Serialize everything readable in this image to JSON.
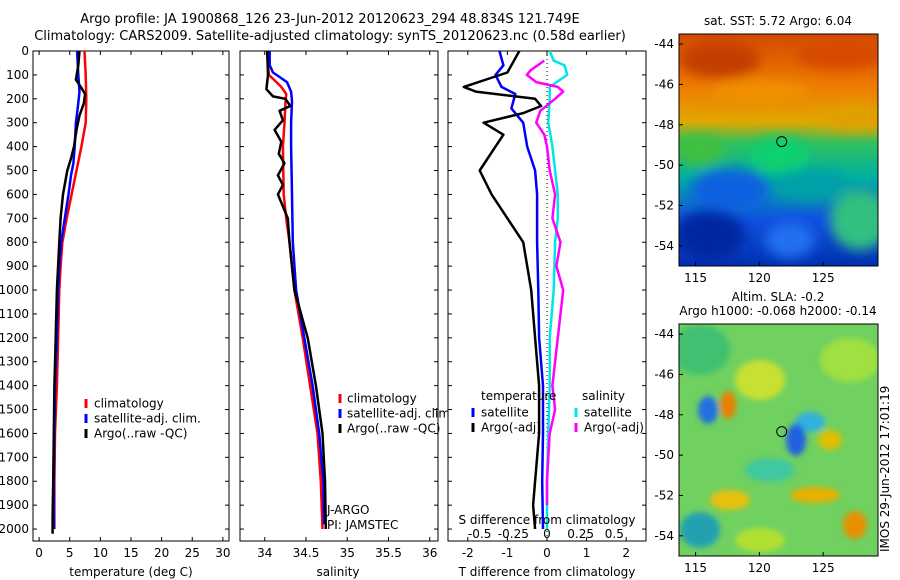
{
  "header": {
    "line1": "Argo profile: JA 1900868_126 23-Jun-2012 20120623_294 48.834S 121.749E",
    "line2": "Climatology: CARS2009. Satellite-adjusted climatology: synTS_20120623.nc (0.58d earlier)"
  },
  "colors": {
    "climatology": "#ff0000",
    "satellite": "#0000ff",
    "argo": "#000000",
    "argo_salinity": "#ff00ff",
    "satellite_salinity": "#00e5e5"
  },
  "chart_data": [
    {
      "type": "line",
      "id": "temperature",
      "xlabel": "temperature (deg C)",
      "xlim": [
        -1,
        31
      ],
      "xticks": [
        "0",
        "5",
        "10",
        "15",
        "20",
        "25",
        "30"
      ],
      "ylim": [
        0,
        2050
      ],
      "yticks": [
        "0",
        "100",
        "200",
        "300",
        "400",
        "500",
        "600",
        "700",
        "800",
        "900",
        "1000",
        "1100",
        "1200",
        "1300",
        "1400",
        "1500",
        "1600",
        "1700",
        "1800",
        "1900",
        "2000"
      ],
      "legend": [
        "climatology",
        "satellite-adj. clim.",
        "Argo(..raw -QC)"
      ],
      "series": [
        {
          "name": "climatology",
          "color": "#ff0000",
          "points": [
            [
              7.4,
              0
            ],
            [
              7.5,
              50
            ],
            [
              7.6,
              100
            ],
            [
              7.7,
              200
            ],
            [
              7.6,
              300
            ],
            [
              6.9,
              400
            ],
            [
              6.1,
              500
            ],
            [
              5.3,
              600
            ],
            [
              4.5,
              700
            ],
            [
              3.8,
              800
            ],
            [
              3.5,
              900
            ],
            [
              3.3,
              1000
            ],
            [
              3.1,
              1200
            ],
            [
              2.9,
              1400
            ],
            [
              2.6,
              1600
            ],
            [
              2.5,
              1800
            ],
            [
              2.5,
              2000
            ]
          ]
        },
        {
          "name": "satellite-adj. clim.",
          "color": "#0000ff",
          "points": [
            [
              6.2,
              0
            ],
            [
              6.3,
              50
            ],
            [
              6.4,
              100
            ],
            [
              6.6,
              170
            ],
            [
              6.3,
              240
            ],
            [
              6.0,
              300
            ],
            [
              5.8,
              400
            ],
            [
              5.6,
              470
            ],
            [
              5.2,
              520
            ],
            [
              4.8,
              600
            ],
            [
              4.2,
              700
            ],
            [
              3.6,
              800
            ],
            [
              3.3,
              900
            ],
            [
              3.1,
              1000
            ],
            [
              2.9,
              1200
            ],
            [
              2.6,
              1400
            ],
            [
              2.5,
              1600
            ],
            [
              2.4,
              1800
            ],
            [
              2.4,
              2000
            ]
          ]
        },
        {
          "name": "Argo(..raw -QC)",
          "color": "#000000",
          "points": [
            [
              6.6,
              0
            ],
            [
              6.4,
              60
            ],
            [
              6.0,
              120
            ],
            [
              6.8,
              150
            ],
            [
              7.5,
              180
            ],
            [
              7.3,
              220
            ],
            [
              6.6,
              270
            ],
            [
              6.1,
              330
            ],
            [
              5.7,
              400
            ],
            [
              5.2,
              450
            ],
            [
              4.6,
              500
            ],
            [
              3.9,
              600
            ],
            [
              3.5,
              700
            ],
            [
              3.3,
              800
            ],
            [
              3.1,
              900
            ],
            [
              2.9,
              1000
            ],
            [
              2.7,
              1200
            ],
            [
              2.5,
              1400
            ],
            [
              2.4,
              1600
            ],
            [
              2.3,
              1800
            ],
            [
              2.2,
              1950
            ],
            [
              2.2,
              2020
            ]
          ]
        }
      ]
    },
    {
      "type": "line",
      "id": "salinity",
      "xlabel": "salinity",
      "xlim": [
        33.7,
        36.1
      ],
      "xticks": [
        "34",
        "34.5",
        "35",
        "35.5",
        "36"
      ],
      "ylim": [
        0,
        2050
      ],
      "legend": [
        "climatology",
        "satellite-adj. clim.",
        "Argo(..raw -QC)"
      ],
      "annotation": [
        "J-ARGO",
        "PI: JAMSTEC"
      ],
      "series": [
        {
          "name": "climatology",
          "color": "#ff0000",
          "points": [
            [
              34.03,
              0
            ],
            [
              34.04,
              60
            ],
            [
              34.05,
              100
            ],
            [
              34.2,
              150
            ],
            [
              34.26,
              180
            ],
            [
              34.25,
              220
            ],
            [
              34.24,
              300
            ],
            [
              34.22,
              400
            ],
            [
              34.23,
              600
            ],
            [
              34.26,
              700
            ],
            [
              34.3,
              800
            ],
            [
              34.36,
              1000
            ],
            [
              34.46,
              1200
            ],
            [
              34.55,
              1400
            ],
            [
              34.64,
              1600
            ],
            [
              34.68,
              1800
            ],
            [
              34.7,
              2000
            ]
          ]
        },
        {
          "name": "satellite-adj. clim.",
          "color": "#0000ff",
          "points": [
            [
              34.06,
              0
            ],
            [
              34.06,
              60
            ],
            [
              34.1,
              90
            ],
            [
              34.27,
              130
            ],
            [
              34.32,
              170
            ],
            [
              34.33,
              210
            ],
            [
              34.32,
              300
            ],
            [
              34.32,
              400
            ],
            [
              34.33,
              600
            ],
            [
              34.34,
              800
            ],
            [
              34.38,
              1000
            ],
            [
              34.48,
              1200
            ],
            [
              34.58,
              1400
            ],
            [
              34.66,
              1600
            ],
            [
              34.71,
              1800
            ],
            [
              34.72,
              1980
            ]
          ]
        },
        {
          "name": "Argo(..raw -QC)",
          "color": "#000000",
          "points": [
            [
              34.03,
              0
            ],
            [
              34.04,
              100
            ],
            [
              34.02,
              160
            ],
            [
              34.1,
              190
            ],
            [
              34.25,
              200
            ],
            [
              34.31,
              230
            ],
            [
              34.18,
              250
            ],
            [
              34.22,
              290
            ],
            [
              34.12,
              330
            ],
            [
              34.2,
              380
            ],
            [
              34.17,
              430
            ],
            [
              34.24,
              470
            ],
            [
              34.16,
              520
            ],
            [
              34.22,
              560
            ],
            [
              34.16,
              600
            ],
            [
              34.22,
              650
            ],
            [
              34.28,
              700
            ],
            [
              34.3,
              800
            ],
            [
              34.36,
              1000
            ],
            [
              34.52,
              1200
            ],
            [
              34.62,
              1400
            ],
            [
              34.7,
              1600
            ],
            [
              34.73,
              1800
            ],
            [
              34.74,
              2000
            ]
          ]
        }
      ]
    },
    {
      "type": "line",
      "id": "difference",
      "xlabel": "T difference from climatology",
      "xlim": [
        -2.5,
        2.5
      ],
      "xticks": [
        "-2",
        "-1",
        "0",
        "1",
        "2"
      ],
      "xlabel2": "S difference from climatology",
      "xticks2": [
        "-0.5",
        "-0.25",
        "0",
        "0.25",
        "0.5"
      ],
      "ylim": [
        0,
        2050
      ],
      "legend_titles": [
        "temperature",
        "salinity"
      ],
      "legend": [
        "satellite",
        "Argo(-adj)",
        "satellite",
        "Argo(-adj)"
      ],
      "series": [
        {
          "name": "T satellite",
          "color": "#0000ff",
          "points": [
            [
              -1.2,
              0
            ],
            [
              -1.1,
              60
            ],
            [
              -1.3,
              100
            ],
            [
              -1.15,
              150
            ],
            [
              -0.8,
              180
            ],
            [
              -0.9,
              240
            ],
            [
              -0.6,
              300
            ],
            [
              -0.5,
              400
            ],
            [
              -0.3,
              500
            ],
            [
              -0.25,
              600
            ],
            [
              -0.25,
              800
            ],
            [
              -0.22,
              1000
            ],
            [
              -0.2,
              1200
            ],
            [
              -0.1,
              1400
            ],
            [
              -0.1,
              1600
            ],
            [
              -0.12,
              1800
            ],
            [
              -0.1,
              2000
            ]
          ]
        },
        {
          "name": "T Argo(-adj)",
          "color": "#000000",
          "points": [
            [
              -0.7,
              0
            ],
            [
              -0.9,
              60
            ],
            [
              -1.0,
              90
            ],
            [
              -2.1,
              150
            ],
            [
              -1.8,
              170
            ],
            [
              -0.3,
              200
            ],
            [
              -0.15,
              230
            ],
            [
              -0.6,
              260
            ],
            [
              -1.6,
              300
            ],
            [
              -1.1,
              350
            ],
            [
              -1.3,
              400
            ],
            [
              -1.7,
              500
            ],
            [
              -1.4,
              600
            ],
            [
              -1.0,
              700
            ],
            [
              -0.6,
              800
            ],
            [
              -0.4,
              1000
            ],
            [
              -0.3,
              1200
            ],
            [
              -0.2,
              1400
            ],
            [
              -0.2,
              1600
            ],
            [
              -0.3,
              1800
            ],
            [
              -0.35,
              1900
            ],
            [
              -0.3,
              2000
            ]
          ]
        },
        {
          "name": "S satellite",
          "color": "#00e5e5",
          "points": [
            [
              0.02,
              0
            ],
            [
              0.05,
              40
            ],
            [
              0.13,
              60
            ],
            [
              0.15,
              100
            ],
            [
              0.02,
              150
            ],
            [
              0.02,
              200
            ],
            [
              0.01,
              300
            ],
            [
              0.04,
              400
            ],
            [
              0.06,
              500
            ],
            [
              0.08,
              600
            ],
            [
              0.08,
              700
            ],
            [
              0.06,
              800
            ],
            [
              0.05,
              1000
            ],
            [
              0.02,
              1200
            ],
            [
              0.02,
              1400
            ],
            [
              0.01,
              1600
            ],
            [
              0.0,
              1800
            ],
            [
              0.0,
              2000
            ]
          ]
        },
        {
          "name": "S Argo(-adj)",
          "color": "#ff00ff",
          "points": [
            [
              -0.02,
              40
            ],
            [
              -0.12,
              80
            ],
            [
              -0.15,
              100
            ],
            [
              -0.08,
              130
            ],
            [
              0.08,
              150
            ],
            [
              0.12,
              170
            ],
            [
              0.06,
              200
            ],
            [
              -0.05,
              250
            ],
            [
              -0.08,
              300
            ],
            [
              -0.02,
              350
            ],
            [
              0.0,
              400
            ],
            [
              0.02,
              500
            ],
            [
              0.06,
              600
            ],
            [
              0.04,
              700
            ],
            [
              0.1,
              800
            ],
            [
              0.07,
              900
            ],
            [
              0.12,
              1000
            ],
            [
              0.1,
              1100
            ],
            [
              0.08,
              1200
            ],
            [
              0.06,
              1300
            ],
            [
              0.04,
              1400
            ],
            [
              0.06,
              1500
            ],
            [
              0.02,
              1600
            ],
            [
              0.01,
              1700
            ],
            [
              0.0,
              1800
            ],
            [
              0.0,
              1900
            ]
          ]
        }
      ]
    },
    {
      "type": "heatmap",
      "id": "sst_map",
      "title": "sat. SST: 5.72 Argo: 6.04",
      "xticks": [
        "115",
        "120",
        "125"
      ],
      "yticks": [
        "-44",
        "-46",
        "-48",
        "-50",
        "-52",
        "-54"
      ],
      "marker_lat": -48.834,
      "marker_lon": 121.749
    },
    {
      "type": "heatmap",
      "id": "sla_map",
      "title": "Altim. SLA: -0.2",
      "subtitle": "Argo h1000: -0.068 h2000: -0.14",
      "xticks": [
        "115",
        "120",
        "125"
      ],
      "yticks": [
        "-44",
        "-46",
        "-48",
        "-50",
        "-52",
        "-54"
      ],
      "marker_lat": -48.834,
      "marker_lon": 121.749,
      "side_label": "IMOS 29-Jun-2012 17:01:19"
    }
  ]
}
